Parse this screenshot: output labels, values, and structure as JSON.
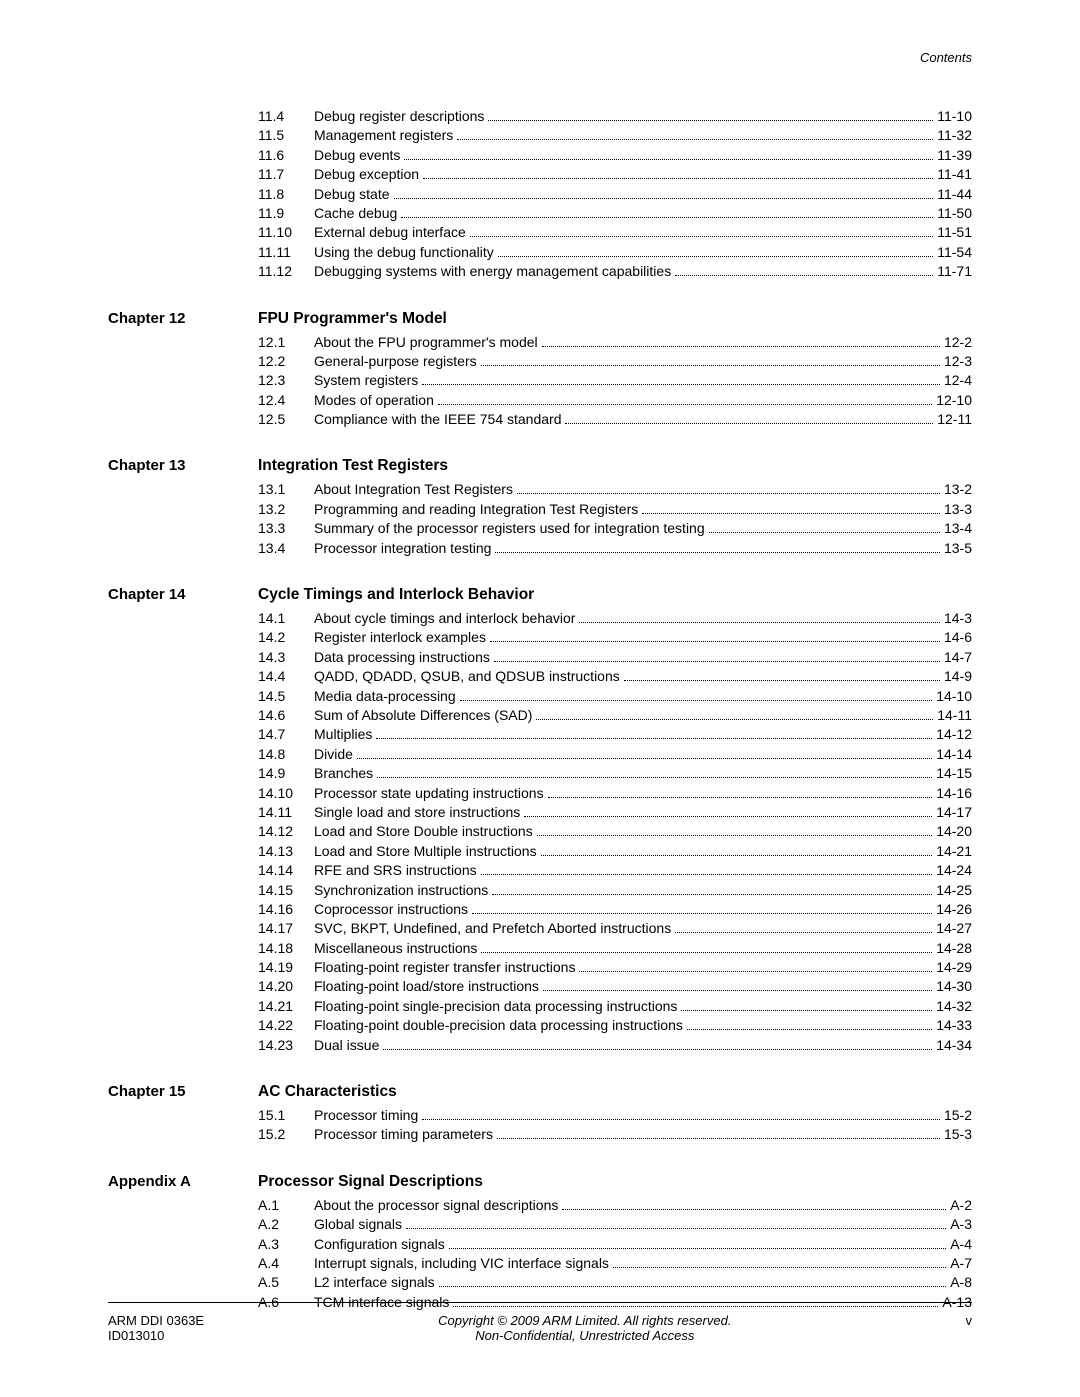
{
  "header": {
    "label": "Contents"
  },
  "orphan": {
    "entries": [
      {
        "num": "11.4",
        "title": "Debug register descriptions",
        "page": "11-10"
      },
      {
        "num": "11.5",
        "title": "Management registers",
        "page": "11-32"
      },
      {
        "num": "11.6",
        "title": "Debug events",
        "page": "11-39"
      },
      {
        "num": "11.7",
        "title": "Debug exception",
        "page": "11-41"
      },
      {
        "num": "11.8",
        "title": "Debug state",
        "page": "11-44"
      },
      {
        "num": "11.9",
        "title": "Cache debug",
        "page": "11-50"
      },
      {
        "num": "11.10",
        "title": "External debug interface",
        "page": "11-51"
      },
      {
        "num": "11.11",
        "title": "Using the debug functionality",
        "page": "11-54"
      },
      {
        "num": "11.12",
        "title": "Debugging systems with energy management capabilities",
        "page": "11-71"
      }
    ]
  },
  "sections": [
    {
      "chapter": "Chapter 12",
      "title": "FPU Programmer's Model",
      "entries": [
        {
          "num": "12.1",
          "title": "About the FPU programmer's model",
          "page": "12-2"
        },
        {
          "num": "12.2",
          "title": "General-purpose registers",
          "page": "12-3"
        },
        {
          "num": "12.3",
          "title": "System registers",
          "page": "12-4"
        },
        {
          "num": "12.4",
          "title": "Modes of operation",
          "page": "12-10"
        },
        {
          "num": "12.5",
          "title": "Compliance with the IEEE 754 standard",
          "page": "12-11"
        }
      ]
    },
    {
      "chapter": "Chapter 13",
      "title": "Integration Test Registers",
      "entries": [
        {
          "num": "13.1",
          "title": "About Integration Test Registers",
          "page": "13-2"
        },
        {
          "num": "13.2",
          "title": "Programming and reading Integration Test Registers",
          "page": "13-3"
        },
        {
          "num": "13.3",
          "title": "Summary of the processor registers used for integration testing",
          "page": "13-4"
        },
        {
          "num": "13.4",
          "title": "Processor integration testing",
          "page": "13-5"
        }
      ]
    },
    {
      "chapter": "Chapter 14",
      "title": "Cycle Timings and Interlock Behavior",
      "entries": [
        {
          "num": "14.1",
          "title": "About cycle timings and interlock behavior",
          "page": "14-3"
        },
        {
          "num": "14.2",
          "title": "Register interlock examples",
          "page": "14-6"
        },
        {
          "num": "14.3",
          "title": "Data processing instructions",
          "page": "14-7"
        },
        {
          "num": "14.4",
          "title": "QADD, QDADD, QSUB, and QDSUB instructions",
          "page": "14-9"
        },
        {
          "num": "14.5",
          "title": "Media data-processing",
          "page": "14-10"
        },
        {
          "num": "14.6",
          "title": "Sum of Absolute Differences (SAD)",
          "page": "14-11"
        },
        {
          "num": "14.7",
          "title": "Multiplies",
          "page": "14-12"
        },
        {
          "num": "14.8",
          "title": "Divide",
          "page": "14-14"
        },
        {
          "num": "14.9",
          "title": "Branches",
          "page": "14-15"
        },
        {
          "num": "14.10",
          "title": "Processor state updating instructions",
          "page": "14-16"
        },
        {
          "num": "14.11",
          "title": "Single load and store instructions",
          "page": "14-17"
        },
        {
          "num": "14.12",
          "title": "Load and Store Double instructions",
          "page": "14-20"
        },
        {
          "num": "14.13",
          "title": "Load and Store Multiple instructions",
          "page": "14-21"
        },
        {
          "num": "14.14",
          "title": "RFE and SRS instructions",
          "page": "14-24"
        },
        {
          "num": "14.15",
          "title": "Synchronization instructions",
          "page": "14-25"
        },
        {
          "num": "14.16",
          "title": "Coprocessor instructions",
          "page": "14-26"
        },
        {
          "num": "14.17",
          "title": "SVC, BKPT, Undefined, and Prefetch Aborted instructions",
          "page": "14-27"
        },
        {
          "num": "14.18",
          "title": "Miscellaneous instructions",
          "page": "14-28"
        },
        {
          "num": "14.19",
          "title": "Floating-point register transfer instructions",
          "page": "14-29"
        },
        {
          "num": "14.20",
          "title": "Floating-point load/store instructions",
          "page": "14-30"
        },
        {
          "num": "14.21",
          "title": "Floating-point single-precision data processing instructions",
          "page": "14-32"
        },
        {
          "num": "14.22",
          "title": "Floating-point double-precision data processing instructions",
          "page": "14-33"
        },
        {
          "num": "14.23",
          "title": "Dual issue",
          "page": "14-34"
        }
      ]
    },
    {
      "chapter": "Chapter 15",
      "title": "AC Characteristics",
      "entries": [
        {
          "num": "15.1",
          "title": "Processor timing",
          "page": "15-2"
        },
        {
          "num": "15.2",
          "title": "Processor timing parameters",
          "page": "15-3"
        }
      ]
    },
    {
      "chapter": "Appendix A",
      "title": "Processor Signal Descriptions",
      "entries": [
        {
          "num": "A.1",
          "title": "About the processor signal descriptions",
          "page": "A-2"
        },
        {
          "num": "A.2",
          "title": "Global signals",
          "page": "A-3"
        },
        {
          "num": "A.3",
          "title": "Configuration signals",
          "page": "A-4"
        },
        {
          "num": "A.4",
          "title": "Interrupt signals, including VIC interface signals",
          "page": "A-7"
        },
        {
          "num": "A.5",
          "title": "L2 interface signals",
          "page": "A-8"
        },
        {
          "num": "A.6",
          "title": "TCM interface signals",
          "page": "A-13"
        }
      ]
    }
  ],
  "footer": {
    "left1": "ARM DDI 0363E",
    "left2": "ID013010",
    "center1": "Copyright © 2009 ARM Limited. All rights reserved.",
    "center2": "Non-Confidential, Unrestricted Access",
    "right": "v"
  }
}
